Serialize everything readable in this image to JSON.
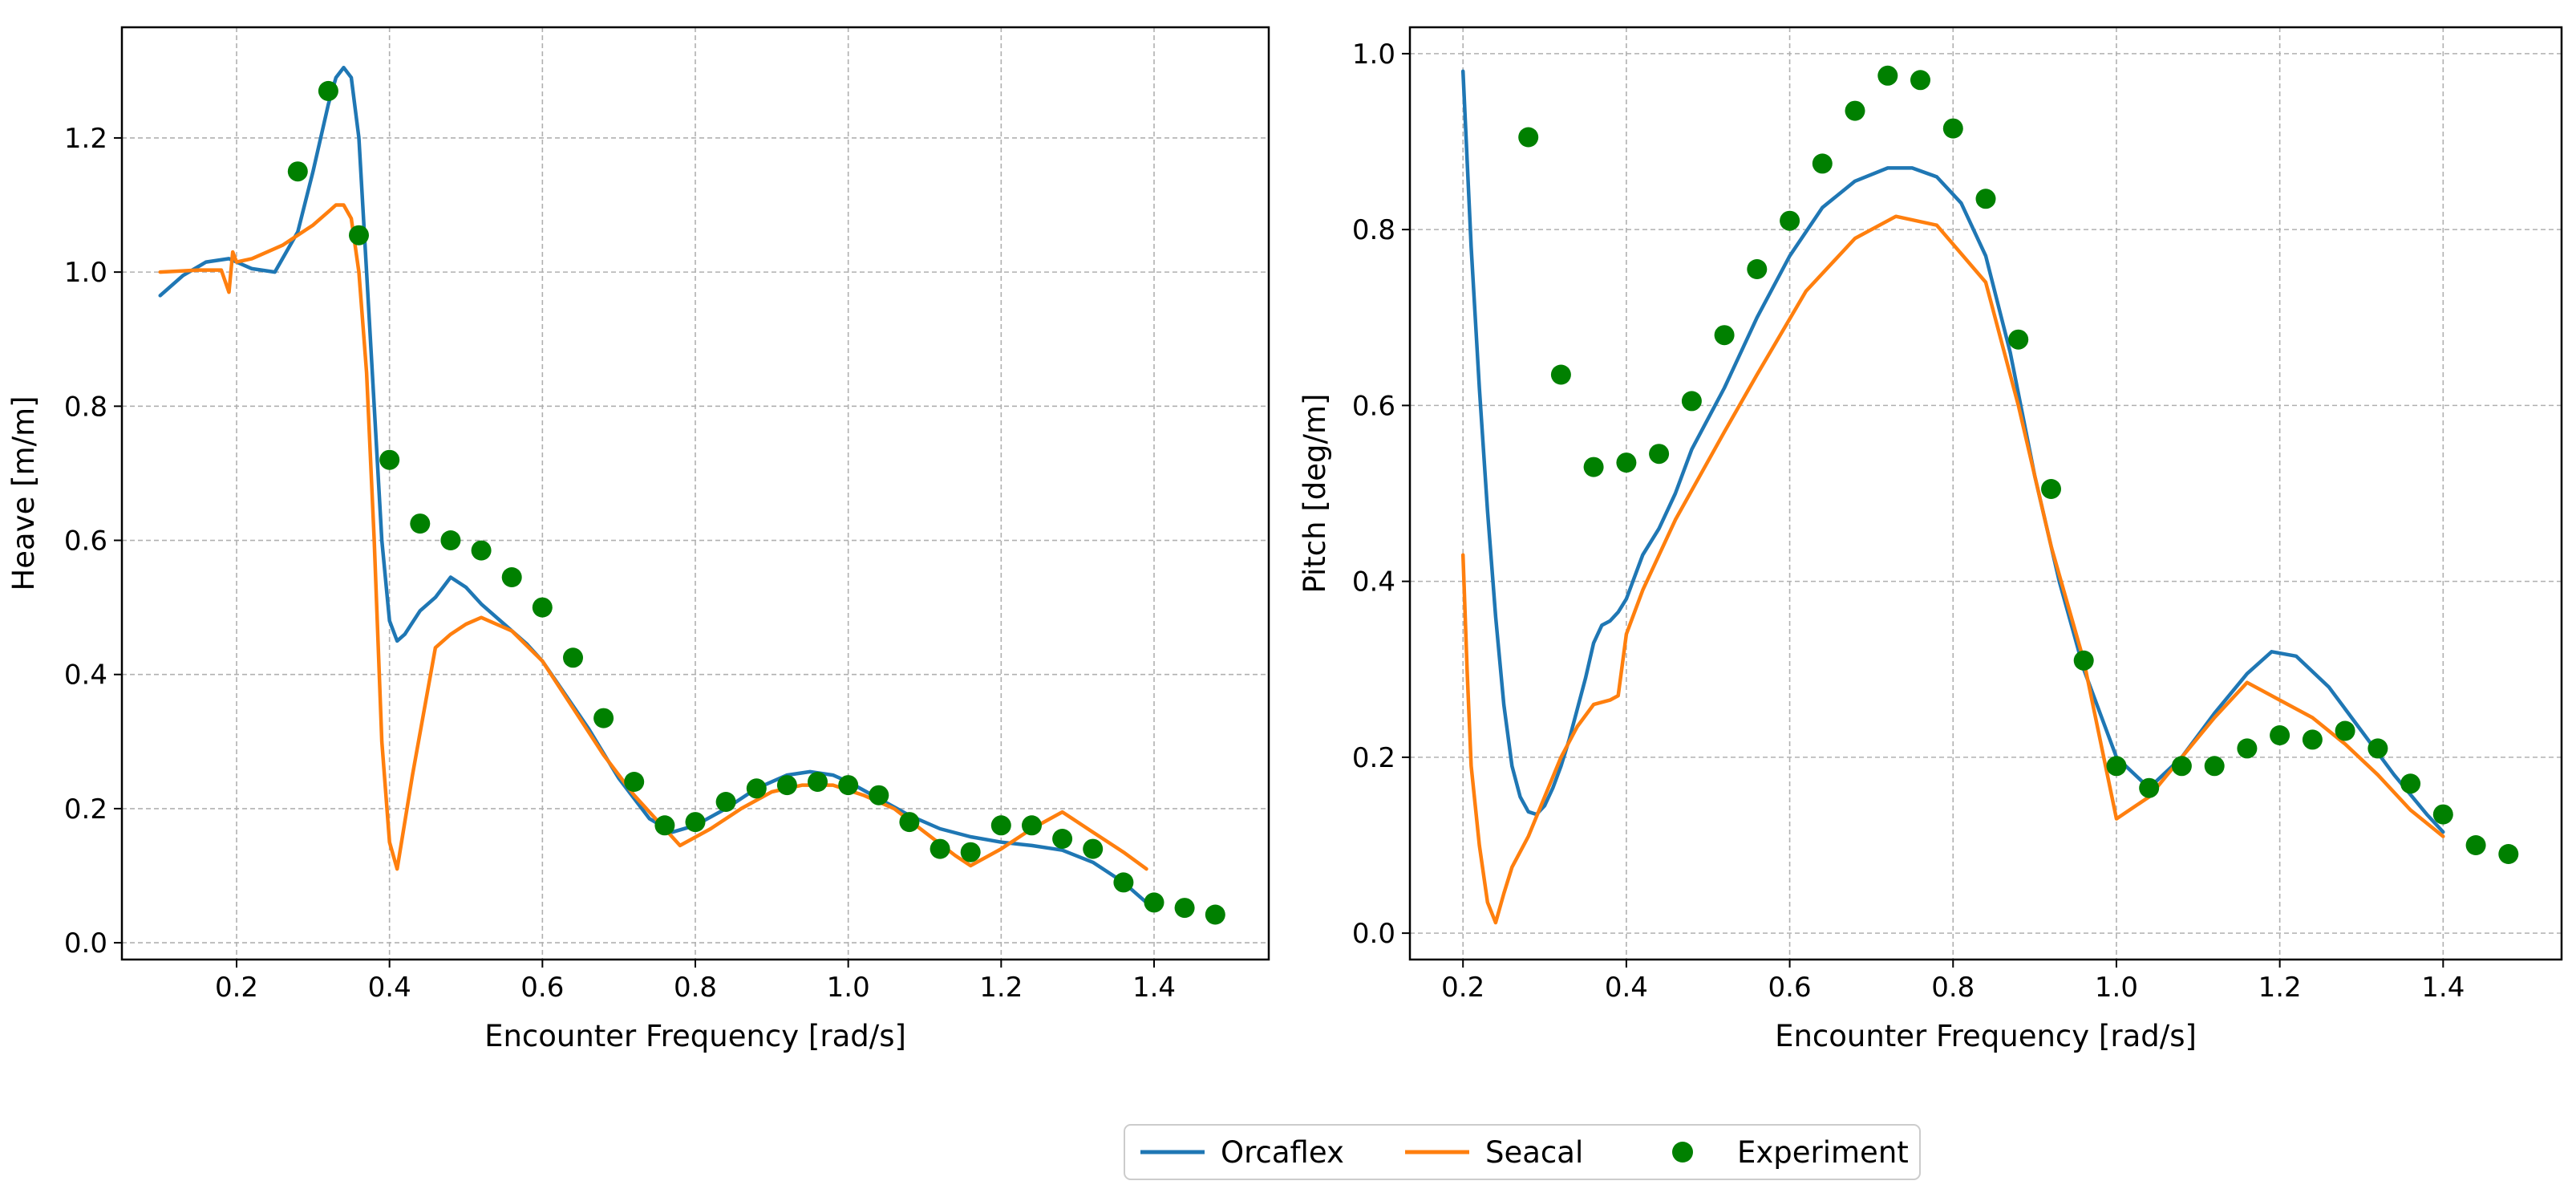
{
  "colors": {
    "orcaflex": "#1f77b4",
    "seacal": "#ff7f0e",
    "experiment": "#008000",
    "grid": "#b0b0b0"
  },
  "legend": {
    "placement": "bottom-center",
    "items": [
      {
        "label": "Orcaflex",
        "kind": "line",
        "color": "#1f77b4"
      },
      {
        "label": "Seacal",
        "kind": "line",
        "color": "#ff7f0e"
      },
      {
        "label": "Experiment",
        "kind": "marker",
        "color": "#008000"
      }
    ]
  },
  "chart_data": [
    {
      "type": "line",
      "title": "",
      "xlabel": "Encounter Frequency [rad/s]",
      "ylabel": "Heave [m/m]",
      "xlim": [
        0.05,
        1.55
      ],
      "ylim": [
        -0.025,
        1.365
      ],
      "xticks": [
        0.2,
        0.4,
        0.6,
        0.8,
        1.0,
        1.2,
        1.4
      ],
      "xtick_labels": [
        "0.2",
        "0.4",
        "0.6",
        "0.8",
        "1.0",
        "1.2",
        "1.4"
      ],
      "yticks": [
        0.0,
        0.2,
        0.4,
        0.6,
        0.8,
        1.0,
        1.2
      ],
      "ytick_labels": [
        "0.0",
        "0.2",
        "0.4",
        "0.6",
        "0.8",
        "1.0",
        "1.2"
      ],
      "grid": true,
      "series": [
        {
          "name": "Orcaflex",
          "kind": "line",
          "color": "#1f77b4",
          "x": [
            0.1,
            0.13,
            0.16,
            0.19,
            0.22,
            0.25,
            0.28,
            0.3,
            0.32,
            0.33,
            0.34,
            0.35,
            0.36,
            0.37,
            0.38,
            0.39,
            0.4,
            0.41,
            0.42,
            0.44,
            0.46,
            0.48,
            0.5,
            0.52,
            0.55,
            0.58,
            0.6,
            0.63,
            0.66,
            0.7,
            0.74,
            0.77,
            0.8,
            0.84,
            0.88,
            0.92,
            0.95,
            0.98,
            1.0,
            1.04,
            1.08,
            1.12,
            1.16,
            1.2,
            1.24,
            1.28,
            1.32,
            1.36,
            1.39
          ],
          "y": [
            0.965,
            0.995,
            1.015,
            1.02,
            1.005,
            1.0,
            1.06,
            1.15,
            1.25,
            1.29,
            1.305,
            1.29,
            1.2,
            1.0,
            0.8,
            0.6,
            0.48,
            0.45,
            0.46,
            0.495,
            0.515,
            0.545,
            0.53,
            0.505,
            0.475,
            0.445,
            0.42,
            0.37,
            0.32,
            0.245,
            0.185,
            0.165,
            0.175,
            0.2,
            0.23,
            0.25,
            0.255,
            0.25,
            0.24,
            0.215,
            0.19,
            0.17,
            0.158,
            0.15,
            0.145,
            0.138,
            0.12,
            0.09,
            0.06
          ]
        },
        {
          "name": "Seacal",
          "kind": "line",
          "color": "#ff7f0e",
          "x": [
            0.1,
            0.15,
            0.18,
            0.19,
            0.195,
            0.2,
            0.22,
            0.26,
            0.3,
            0.32,
            0.33,
            0.34,
            0.35,
            0.36,
            0.37,
            0.38,
            0.39,
            0.4,
            0.41,
            0.43,
            0.46,
            0.48,
            0.5,
            0.52,
            0.56,
            0.6,
            0.64,
            0.68,
            0.72,
            0.76,
            0.78,
            0.82,
            0.86,
            0.9,
            0.94,
            0.98,
            1.02,
            1.06,
            1.1,
            1.14,
            1.16,
            1.2,
            1.24,
            1.28,
            1.32,
            1.36,
            1.39
          ],
          "y": [
            1.0,
            1.003,
            1.003,
            0.97,
            1.03,
            1.015,
            1.02,
            1.04,
            1.07,
            1.09,
            1.1,
            1.1,
            1.08,
            1.0,
            0.85,
            0.6,
            0.3,
            0.15,
            0.11,
            0.25,
            0.44,
            0.46,
            0.475,
            0.485,
            0.465,
            0.42,
            0.35,
            0.28,
            0.22,
            0.17,
            0.145,
            0.17,
            0.2,
            0.225,
            0.235,
            0.235,
            0.22,
            0.2,
            0.165,
            0.13,
            0.115,
            0.14,
            0.17,
            0.195,
            0.165,
            0.135,
            0.11
          ]
        },
        {
          "name": "Experiment",
          "kind": "scatter",
          "color": "#008000",
          "x": [
            0.28,
            0.32,
            0.36,
            0.4,
            0.44,
            0.48,
            0.52,
            0.56,
            0.6,
            0.64,
            0.68,
            0.72,
            0.76,
            0.8,
            0.84,
            0.88,
            0.92,
            0.96,
            1.0,
            1.04,
            1.08,
            1.12,
            1.16,
            1.2,
            1.24,
            1.28,
            1.32,
            1.36,
            1.4,
            1.44,
            1.48
          ],
          "y": [
            1.15,
            1.27,
            1.055,
            0.72,
            0.625,
            0.6,
            0.585,
            0.545,
            0.5,
            0.425,
            0.335,
            0.24,
            0.175,
            0.18,
            0.21,
            0.23,
            0.235,
            0.24,
            0.235,
            0.22,
            0.18,
            0.14,
            0.135,
            0.175,
            0.175,
            0.155,
            0.14,
            0.09,
            0.06,
            0.052,
            0.042
          ]
        }
      ]
    },
    {
      "type": "line",
      "title": "",
      "xlabel": "Encounter Frequency [rad/s]",
      "ylabel": "Pitch [deg/m]",
      "xlim": [
        0.135,
        1.545
      ],
      "ylim": [
        -0.03,
        1.03
      ],
      "xticks": [
        0.2,
        0.4,
        0.6,
        0.8,
        1.0,
        1.2,
        1.4
      ],
      "xtick_labels": [
        "0.2",
        "0.4",
        "0.6",
        "0.8",
        "1.0",
        "1.2",
        "1.4"
      ],
      "yticks": [
        0.0,
        0.2,
        0.4,
        0.6,
        0.8,
        1.0
      ],
      "ytick_labels": [
        "0.0",
        "0.2",
        "0.4",
        "0.6",
        "0.8",
        "1.0"
      ],
      "grid": true,
      "series": [
        {
          "name": "Orcaflex",
          "kind": "line",
          "color": "#1f77b4",
          "x": [
            0.2,
            0.21,
            0.22,
            0.23,
            0.24,
            0.25,
            0.26,
            0.27,
            0.28,
            0.29,
            0.3,
            0.31,
            0.32,
            0.33,
            0.34,
            0.35,
            0.36,
            0.37,
            0.38,
            0.39,
            0.4,
            0.42,
            0.44,
            0.46,
            0.48,
            0.52,
            0.56,
            0.6,
            0.64,
            0.68,
            0.72,
            0.75,
            0.78,
            0.81,
            0.84,
            0.87,
            0.9,
            0.93,
            0.96,
            1.0,
            1.04,
            1.08,
            1.12,
            1.16,
            1.19,
            1.22,
            1.26,
            1.3,
            1.34,
            1.38,
            1.4
          ],
          "y": [
            0.98,
            0.78,
            0.62,
            0.48,
            0.36,
            0.26,
            0.19,
            0.155,
            0.138,
            0.135,
            0.145,
            0.165,
            0.19,
            0.22,
            0.255,
            0.29,
            0.33,
            0.35,
            0.355,
            0.365,
            0.38,
            0.43,
            0.46,
            0.5,
            0.55,
            0.62,
            0.7,
            0.77,
            0.825,
            0.855,
            0.87,
            0.87,
            0.86,
            0.83,
            0.77,
            0.66,
            0.52,
            0.4,
            0.3,
            0.2,
            0.165,
            0.2,
            0.25,
            0.295,
            0.32,
            0.315,
            0.28,
            0.23,
            0.18,
            0.135,
            0.115
          ]
        },
        {
          "name": "Seacal",
          "kind": "line",
          "color": "#ff7f0e",
          "x": [
            0.2,
            0.205,
            0.21,
            0.22,
            0.23,
            0.24,
            0.25,
            0.26,
            0.28,
            0.3,
            0.32,
            0.34,
            0.36,
            0.38,
            0.39,
            0.4,
            0.42,
            0.46,
            0.52,
            0.56,
            0.62,
            0.68,
            0.73,
            0.78,
            0.84,
            0.88,
            0.92,
            0.96,
            1.0,
            1.04,
            1.08,
            1.12,
            1.16,
            1.2,
            1.24,
            1.28,
            1.32,
            1.36,
            1.4
          ],
          "y": [
            0.43,
            0.3,
            0.19,
            0.1,
            0.035,
            0.012,
            0.045,
            0.075,
            0.11,
            0.155,
            0.2,
            0.235,
            0.26,
            0.265,
            0.27,
            0.34,
            0.39,
            0.47,
            0.57,
            0.635,
            0.73,
            0.79,
            0.815,
            0.805,
            0.74,
            0.6,
            0.44,
            0.31,
            0.13,
            0.155,
            0.2,
            0.245,
            0.285,
            0.265,
            0.245,
            0.215,
            0.18,
            0.14,
            0.11
          ]
        },
        {
          "name": "Experiment",
          "kind": "scatter",
          "color": "#008000",
          "x": [
            0.28,
            0.32,
            0.36,
            0.4,
            0.44,
            0.48,
            0.52,
            0.56,
            0.6,
            0.64,
            0.68,
            0.72,
            0.76,
            0.8,
            0.84,
            0.88,
            0.92,
            0.96,
            1.0,
            1.04,
            1.08,
            1.12,
            1.16,
            1.2,
            1.24,
            1.28,
            1.32,
            1.36,
            1.4,
            1.44,
            1.48
          ],
          "y": [
            0.905,
            0.635,
            0.53,
            0.535,
            0.545,
            0.605,
            0.68,
            0.755,
            0.81,
            0.875,
            0.935,
            0.975,
            0.97,
            0.915,
            0.835,
            0.675,
            0.505,
            0.31,
            0.19,
            0.165,
            0.19,
            0.19,
            0.21,
            0.225,
            0.22,
            0.23,
            0.21,
            0.17,
            0.135,
            0.1,
            0.09
          ]
        }
      ]
    }
  ]
}
